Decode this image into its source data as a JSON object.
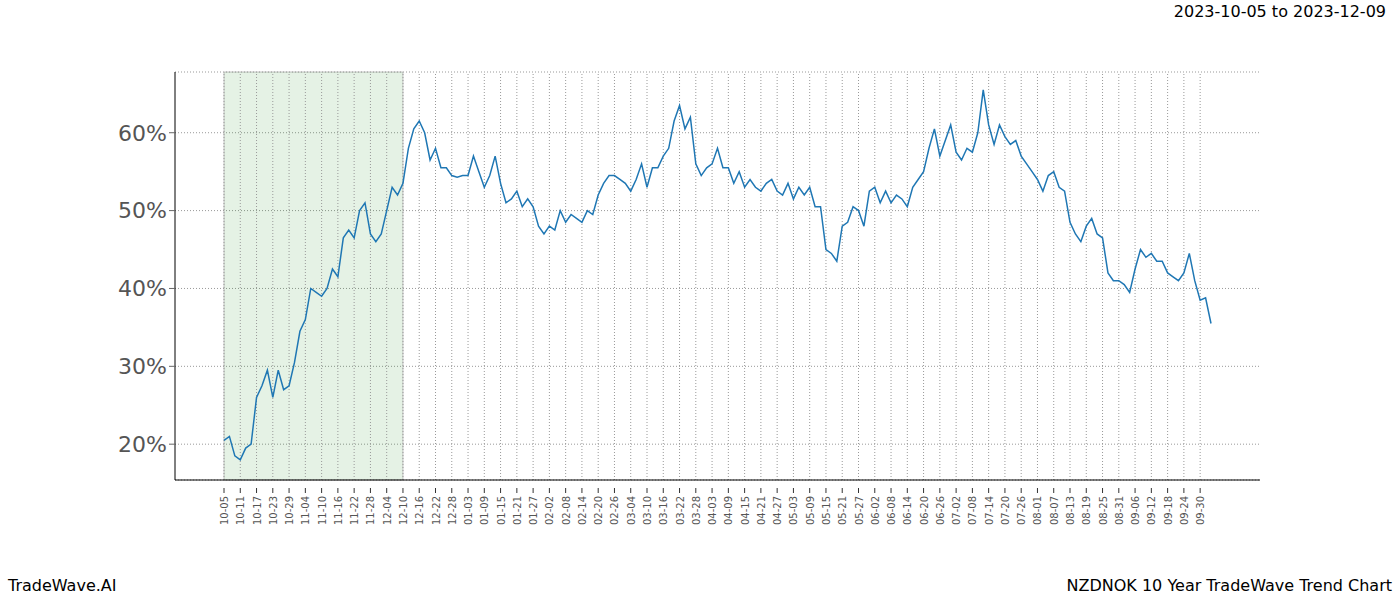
{
  "chart_data": {
    "type": "line",
    "title": "2023-10-05 to 2023-12-09",
    "footer_left": "TradeWave.AI",
    "footer_right": "NZDNOK 10 Year TradeWave Trend Chart",
    "categories": [
      "10-05",
      null,
      null,
      "10-11",
      null,
      null,
      "10-17",
      null,
      null,
      "10-23",
      null,
      null,
      "10-29",
      null,
      null,
      "11-04",
      null,
      null,
      "11-10",
      null,
      null,
      "11-16",
      null,
      null,
      "11-22",
      null,
      null,
      "11-28",
      null,
      null,
      "12-04",
      null,
      null,
      "12-10",
      null,
      null,
      "12-16",
      null,
      null,
      "12-22",
      null,
      null,
      "12-28",
      null,
      null,
      "01-03",
      null,
      null,
      "01-09",
      null,
      null,
      "01-15",
      null,
      null,
      "01-21",
      null,
      null,
      "01-27",
      null,
      null,
      "02-02",
      null,
      null,
      "02-08",
      null,
      null,
      "02-14",
      null,
      null,
      "02-20",
      null,
      null,
      "02-26",
      null,
      null,
      "03-04",
      null,
      null,
      "03-10",
      null,
      null,
      "03-16",
      null,
      null,
      "03-22",
      null,
      null,
      "03-28",
      null,
      null,
      "04-03",
      null,
      null,
      "04-09",
      null,
      null,
      "04-15",
      null,
      null,
      "04-21",
      null,
      null,
      "04-27",
      null,
      null,
      "05-03",
      null,
      null,
      "05-09",
      null,
      null,
      "05-15",
      null,
      null,
      "05-21",
      null,
      null,
      "05-27",
      null,
      null,
      "06-02",
      null,
      null,
      "06-08",
      null,
      null,
      "06-14",
      null,
      null,
      "06-20",
      null,
      null,
      "06-26",
      null,
      null,
      "07-02",
      null,
      null,
      "07-08",
      null,
      null,
      "07-14",
      null,
      null,
      "07-20",
      null,
      null,
      "07-26",
      null,
      null,
      "08-01",
      null,
      null,
      "08-07",
      null,
      null,
      "08-13",
      null,
      null,
      "08-19",
      null,
      null,
      "08-25",
      null,
      null,
      "08-31",
      null,
      null,
      "09-06",
      null,
      null,
      "09-12",
      null,
      null,
      "09-18",
      null,
      null,
      "09-24",
      null,
      null,
      "09-30",
      null,
      null
    ],
    "values": [
      20.5,
      21,
      18.5,
      18,
      19.5,
      20,
      26,
      27.5,
      29.5,
      26,
      29.5,
      27,
      27.5,
      30.5,
      34.5,
      36,
      40,
      39.5,
      39,
      40,
      42.5,
      41.5,
      46.5,
      47.5,
      46.5,
      50,
      51,
      47,
      46,
      47,
      50,
      53,
      52,
      53.5,
      58,
      60.5,
      61.5,
      60,
      56.5,
      58,
      55.5,
      55.5,
      54.5,
      54.3,
      54.5,
      54.5,
      57,
      55,
      53,
      54.5,
      57,
      53.5,
      51,
      51.5,
      52.5,
      50.5,
      51.5,
      50.5,
      48,
      47,
      48,
      47.5,
      50,
      48.5,
      49.5,
      49,
      48.5,
      50,
      49.5,
      52,
      53.5,
      54.5,
      54.5,
      54,
      53.5,
      52.5,
      54,
      56,
      53,
      55.5,
      55.5,
      57,
      58,
      61.5,
      63.5,
      60.5,
      62,
      56,
      54.5,
      55.5,
      56,
      58,
      55.5,
      55.5,
      53.5,
      55,
      53,
      54,
      53,
      52.5,
      53.5,
      54,
      52.5,
      52,
      53.5,
      51.5,
      53,
      52,
      53,
      50.5,
      50.5,
      45,
      44.5,
      43.5,
      48,
      48.5,
      50.5,
      50,
      48,
      52.5,
      53,
      51,
      52.5,
      51,
      52,
      51.5,
      50.5,
      53,
      54,
      55,
      58,
      60.5,
      57,
      59,
      61,
      57.5,
      56.5,
      58,
      57.5,
      60,
      65.5,
      61,
      58.5,
      61,
      59.5,
      58.5,
      59,
      57,
      56,
      55,
      54,
      52.5,
      54.5,
      55,
      53,
      52.5,
      48.5,
      47,
      46,
      48,
      49,
      47,
      46.5,
      42,
      41,
      41,
      40.5,
      39.5,
      42.5,
      45,
      44,
      44.5,
      43.5,
      43.5,
      42,
      41.5,
      41,
      42,
      44.5,
      41,
      38.5,
      38.8,
      35.5
    ],
    "color": "#1f77b4",
    "highlight": [
      0,
      33
    ],
    "ylim": [
      15.4,
      67.8
    ],
    "yticks": [
      {
        "value": 20,
        "label": "20%"
      },
      {
        "value": 30,
        "label": "30%"
      },
      {
        "value": 40,
        "label": "40%"
      },
      {
        "value": 50,
        "label": "50%"
      },
      {
        "value": 60,
        "label": "60%"
      }
    ],
    "grid": true
  }
}
